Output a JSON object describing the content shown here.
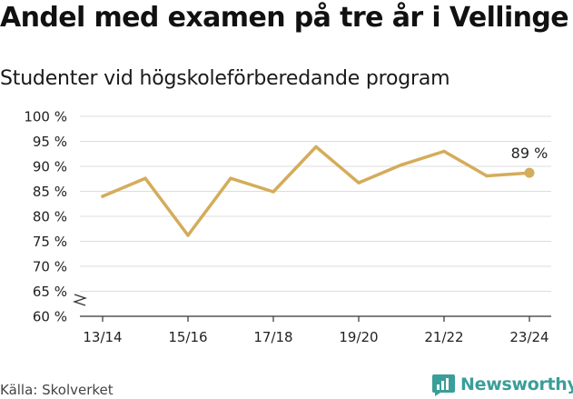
{
  "header": {
    "title": "Andel med examen på tre år i Vellinge",
    "subtitle": "Studenter vid högskoleförberedande program"
  },
  "footer": {
    "source": "Källa: Skolverket",
    "brand": "Newsworthy"
  },
  "colors": {
    "line": "#d4ac5a",
    "grid": "#dcdcdc",
    "axis": "#333333",
    "text": "#222222",
    "brand": "#3a9e99"
  },
  "icons": {
    "brand_logo": "bar-chart-speech-bubble-icon",
    "axis_break": "zigzag-axis-break-icon"
  },
  "chart_data": {
    "type": "line",
    "x": [
      "13/14",
      "14/15",
      "15/16",
      "16/17",
      "17/18",
      "18/19",
      "19/20",
      "20/21",
      "21/22",
      "22/23",
      "23/24"
    ],
    "x_tick_labels": [
      "13/14",
      "15/16",
      "17/18",
      "19/20",
      "21/22",
      "23/24"
    ],
    "series": [
      {
        "values": [
          84.0,
          87.6,
          76.2,
          87.6,
          84.9,
          93.9,
          86.7,
          90.3,
          93.0,
          88.1,
          88.7
        ]
      }
    ],
    "ylim": [
      60,
      100
    ],
    "y_ticks": [
      60,
      65,
      70,
      75,
      80,
      85,
      90,
      95,
      100
    ],
    "y_tick_labels": [
      "60 %",
      "65 %",
      "70 %",
      "75 %",
      "80 %",
      "85 %",
      "90 %",
      "95 %",
      "100 %"
    ],
    "y_axis_break": true,
    "grid": true,
    "annotations": [
      {
        "x": "23/24",
        "label": "89 %"
      }
    ],
    "xlabel": "",
    "ylabel": ""
  }
}
